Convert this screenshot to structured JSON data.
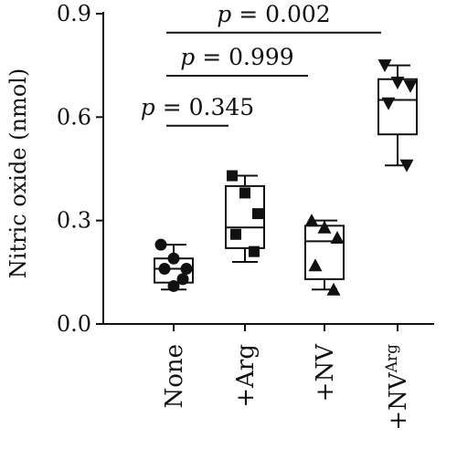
{
  "chart_data": {
    "type": "box",
    "ylabel": "Nitric oxide (nmol)",
    "ylim": [
      0,
      0.9
    ],
    "yticks": [
      "0.0",
      "0.3",
      "0.6",
      "0.9"
    ],
    "yticks_values": [
      0,
      0.3,
      0.6,
      0.9
    ],
    "groups": [
      {
        "name": "None",
        "superscript": "",
        "marker": "circle",
        "min": 0.1,
        "q1": 0.12,
        "median": 0.16,
        "q3": 0.19,
        "max": 0.23,
        "points": [
          0.23,
          0.19,
          0.16,
          0.16,
          0.13,
          0.11
        ]
      },
      {
        "name": "+Arg",
        "superscript": "",
        "marker": "square",
        "min": 0.18,
        "q1": 0.22,
        "median": 0.28,
        "q3": 0.4,
        "max": 0.43,
        "points": [
          0.43,
          0.38,
          0.32,
          0.26,
          0.21
        ]
      },
      {
        "name": "+NV",
        "superscript": "",
        "marker": "triangle-up",
        "min": 0.1,
        "q1": 0.13,
        "median": 0.24,
        "q3": 0.285,
        "max": 0.3,
        "points": [
          0.3,
          0.28,
          0.25,
          0.17,
          0.1
        ]
      },
      {
        "name": "+NV",
        "superscript": "Arg",
        "marker": "triangle-down",
        "min": 0.46,
        "q1": 0.55,
        "median": 0.65,
        "q3": 0.71,
        "max": 0.75,
        "points": [
          0.75,
          0.7,
          0.69,
          0.64,
          0.46
        ]
      }
    ],
    "comparisons": [
      {
        "p_symbol": "p",
        "p_rest": " = 0.345",
        "from": 0,
        "to": 1,
        "y": 0.575
      },
      {
        "p_symbol": "p",
        "p_rest": " = 0.999",
        "from": 0,
        "to": 2,
        "y": 0.72
      },
      {
        "p_symbol": "p",
        "p_rest": " = 0.002",
        "from": 0,
        "to": 3,
        "y": 0.845
      }
    ]
  }
}
